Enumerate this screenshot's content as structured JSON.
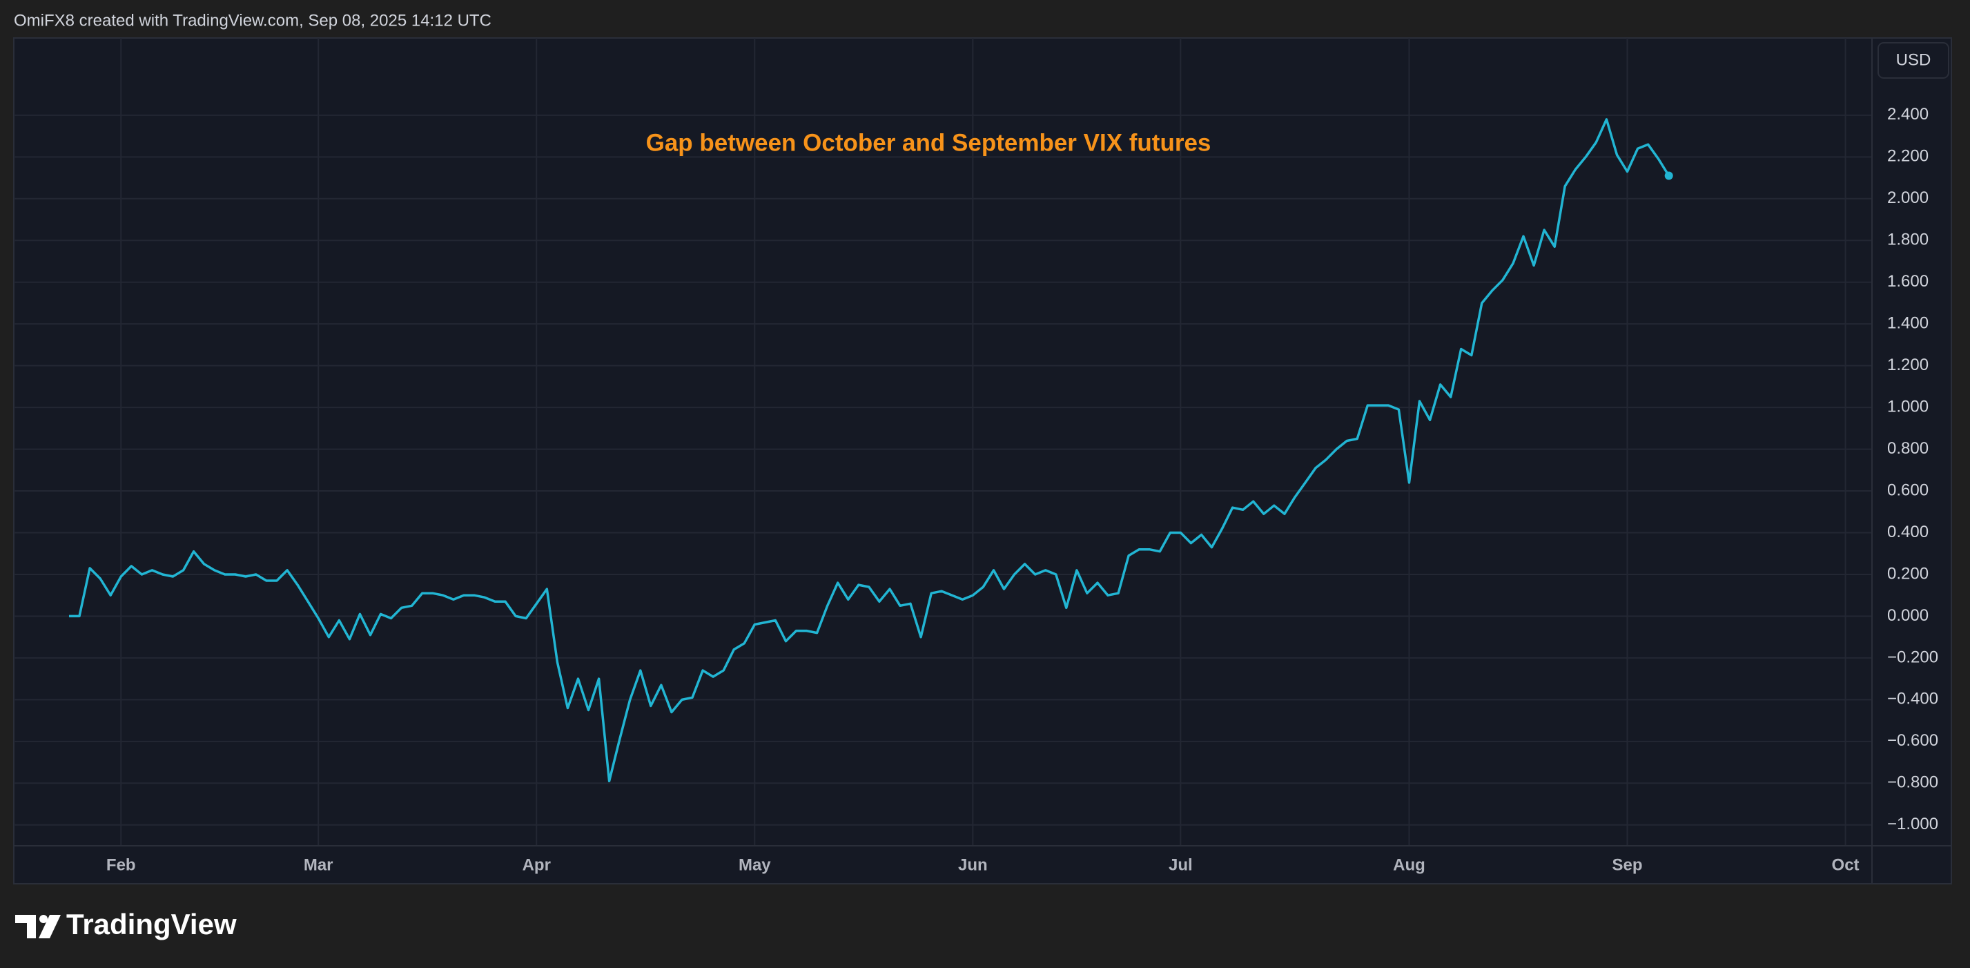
{
  "chart_data": {
    "type": "line",
    "header": "OmiFX8 created with TradingView.com, Sep 08, 2025 14:12 UTC",
    "annotation": "Gap between October and September VIX futures",
    "currency": "USD",
    "brand": "TradingView",
    "color": "#22b5d3",
    "annotation_color": "#f7931a",
    "grid": true,
    "categories": [
      null,
      null,
      null,
      null,
      null,
      "Feb",
      null,
      null,
      null,
      null,
      null,
      null,
      null,
      null,
      null,
      null,
      null,
      null,
      null,
      null,
      null,
      null,
      null,
      null,
      "Mar",
      null,
      null,
      null,
      null,
      null,
      null,
      null,
      null,
      null,
      null,
      null,
      null,
      null,
      null,
      null,
      null,
      null,
      null,
      null,
      null,
      "Apr",
      null,
      null,
      null,
      null,
      null,
      null,
      null,
      null,
      null,
      null,
      null,
      null,
      null,
      null,
      null,
      null,
      null,
      null,
      null,
      null,
      "May",
      null,
      null,
      null,
      null,
      null,
      null,
      null,
      null,
      null,
      null,
      null,
      null,
      null,
      null,
      null,
      null,
      null,
      null,
      null,
      null,
      "Jun",
      null,
      null,
      null,
      null,
      null,
      null,
      null,
      null,
      null,
      null,
      null,
      null,
      null,
      null,
      null,
      null,
      null,
      null,
      null,
      "Jul",
      null,
      null,
      null,
      null,
      null,
      null,
      null,
      null,
      null,
      null,
      null,
      null,
      null,
      null,
      null,
      null,
      null,
      null,
      null,
      null,
      null,
      "Aug",
      null,
      null,
      null,
      null,
      null,
      null,
      null,
      null,
      null,
      null,
      null,
      null,
      null,
      null,
      null,
      null,
      null,
      null,
      null,
      null,
      "Sep",
      null,
      null,
      null,
      null,
      null,
      null,
      null,
      null,
      null,
      null,
      null,
      null,
      null,
      null,
      null,
      null,
      null,
      null,
      null,
      null,
      "Oct"
    ],
    "values": [
      0,
      0,
      0.23,
      0.18,
      0.1,
      0.19,
      0.24,
      0.2,
      0.22,
      0.2,
      0.19,
      0.22,
      0.31,
      0.25,
      0.22,
      0.2,
      0.2,
      0.19,
      0.2,
      0.17,
      0.17,
      0.22,
      0.15,
      0.07,
      -0.01,
      -0.1,
      -0.02,
      -0.11,
      0.01,
      -0.09,
      0.01,
      -0.01,
      0.04,
      0.05,
      0.11,
      0.11,
      0.1,
      0.08,
      0.1,
      0.1,
      0.09,
      0.07,
      0.07,
      0.0,
      -0.01,
      0.06,
      0.13,
      -0.22,
      -0.44,
      -0.3,
      -0.45,
      -0.3,
      -0.79,
      -0.59,
      -0.4,
      -0.26,
      -0.43,
      -0.33,
      -0.46,
      -0.4,
      -0.39,
      -0.26,
      -0.29,
      -0.26,
      -0.16,
      -0.13,
      -0.04,
      -0.03,
      -0.02,
      -0.12,
      -0.07,
      -0.07,
      -0.08,
      0.05,
      0.16,
      0.08,
      0.15,
      0.14,
      0.07,
      0.13,
      0.05,
      0.06,
      -0.1,
      0.11,
      0.12,
      0.1,
      0.08,
      0.1,
      0.14,
      0.22,
      0.13,
      0.2,
      0.25,
      0.2,
      0.22,
      0.2,
      0.04,
      0.22,
      0.11,
      0.16,
      0.1,
      0.11,
      0.29,
      0.32,
      0.32,
      0.31,
      0.4,
      0.4,
      0.35,
      0.39,
      0.33,
      0.42,
      0.52,
      0.51,
      0.55,
      0.49,
      0.53,
      0.49,
      0.57,
      0.64,
      0.71,
      0.75,
      0.8,
      0.84,
      0.85,
      1.01,
      1.01,
      1.01,
      0.99,
      0.64,
      1.03,
      0.94,
      1.11,
      1.05,
      1.28,
      1.25,
      1.5,
      1.56,
      1.61,
      1.69,
      1.82,
      1.68,
      1.85,
      1.77,
      2.06,
      2.14,
      2.2,
      2.27,
      2.38,
      2.21,
      2.13,
      2.24,
      2.26,
      2.19,
      2.11,
      null,
      null,
      null,
      null,
      null,
      null,
      null,
      null,
      null,
      null,
      null,
      null,
      null,
      null,
      null,
      null,
      null
    ],
    "ylim": [
      -1.1,
      2.77
    ],
    "yticks": [
      {
        "value": -1.0,
        "label": "−1.000"
      },
      {
        "value": -0.8,
        "label": "−0.800"
      },
      {
        "value": -0.6,
        "label": "−0.600"
      },
      {
        "value": -0.4,
        "label": "−0.400"
      },
      {
        "value": -0.2,
        "label": "−0.200"
      },
      {
        "value": 0,
        "label": "0.000"
      },
      {
        "value": 0.2,
        "label": "0.200"
      },
      {
        "value": 0.4,
        "label": "0.400"
      },
      {
        "value": 0.6,
        "label": "0.600"
      },
      {
        "value": 0.8,
        "label": "0.800"
      },
      {
        "value": 1.0,
        "label": "1.000"
      },
      {
        "value": 1.2,
        "label": "1.200"
      },
      {
        "value": 1.4,
        "label": "1.400"
      },
      {
        "value": 1.6,
        "label": "1.600"
      },
      {
        "value": 1.8,
        "label": "1.800"
      },
      {
        "value": 2.0,
        "label": "2.000"
      },
      {
        "value": 2.2,
        "label": "2.200"
      },
      {
        "value": 2.4,
        "label": "2.400"
      }
    ]
  }
}
